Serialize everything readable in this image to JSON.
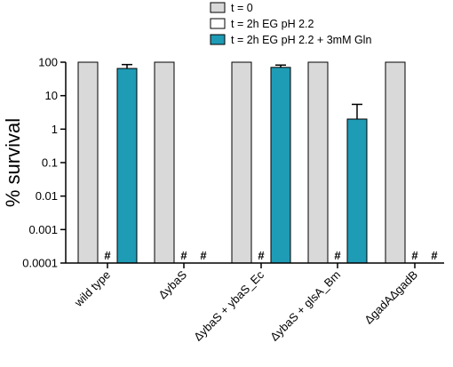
{
  "chart_data": {
    "type": "bar",
    "title": "",
    "xlabel": "",
    "ylabel": "% survival",
    "yscale": "log",
    "ylim": [
      0.0001,
      100
    ],
    "yticks": [
      100,
      10,
      1,
      0.1,
      0.01,
      0.001,
      0.0001
    ],
    "ytick_labels": [
      "100",
      "10",
      "1",
      "0.1",
      "0.01",
      "0.001",
      "0.0001"
    ],
    "grid": false,
    "legend_position": "top",
    "categories": [
      "wild type",
      "ΔybaS",
      "ΔybaS + ybaS_Ec",
      "ΔybaS + glsA_Bm",
      "ΔgadAΔgadB"
    ],
    "series": [
      {
        "name": "t = 0",
        "color": "#d9d9d9",
        "values": [
          100,
          100,
          100,
          100,
          100
        ],
        "err": [
          0,
          0,
          0,
          0,
          0
        ]
      },
      {
        "name": "t = 2h EG pH 2.2",
        "color": "#ffffff",
        "values": [
          null,
          null,
          null,
          null,
          null
        ],
        "err": [
          0,
          0,
          0,
          0,
          0
        ],
        "markers": [
          "#",
          "#",
          "#",
          "#",
          "#"
        ]
      },
      {
        "name": "t = 2h EG pH 2.2 + 3mM Gln",
        "color": "#1e9bb5",
        "values": [
          65,
          null,
          70,
          2,
          null
        ],
        "err": [
          85,
          0,
          82,
          5.5,
          0
        ],
        "markers": [
          "",
          "#",
          "",
          "",
          "#"
        ]
      }
    ]
  }
}
